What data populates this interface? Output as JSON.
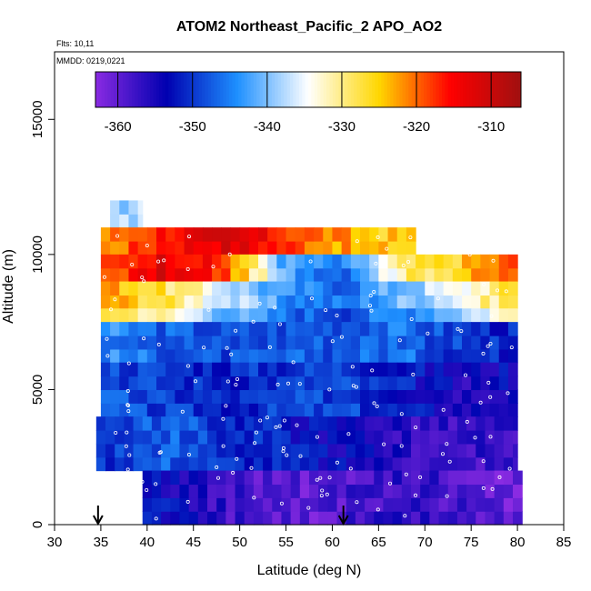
{
  "chart_data": {
    "type": "heatmap",
    "title": "ATOM2 Northeast_Pacific_2 APO_AO2",
    "annotations": {
      "flights": "Flts: 10,11",
      "dates": "MMDD: 0219,0221"
    },
    "xlabel": "Latitude (deg N)",
    "ylabel": "Altitude (m)",
    "xlim": [
      30,
      85
    ],
    "ylim": [
      0,
      17500
    ],
    "x_ticks": [
      30,
      35,
      40,
      45,
      50,
      55,
      60,
      65,
      70,
      75,
      80,
      85
    ],
    "y_ticks": [
      0,
      5000,
      10000,
      15000
    ],
    "grid": false,
    "colorbar": {
      "range": [
        -363,
        -306
      ],
      "ticks": [
        -360,
        -350,
        -340,
        -330,
        -320,
        -310
      ],
      "colors": [
        "#8a2be2",
        "#0000b0",
        "#1e90ff",
        "#ffffff",
        "#ffd700",
        "#ff0000",
        "#a01010"
      ]
    },
    "profiles": [
      {
        "lat_range": [
          34.5,
          39.5
        ],
        "alt_range": [
          1500,
          11900
        ]
      },
      {
        "lat_range": [
          39.5,
          80.5
        ],
        "alt_range": [
          0,
          11000
        ]
      }
    ],
    "layers": [
      {
        "alt": [
          11000,
          12000
        ],
        "lat": [
          36,
          39.5
        ],
        "values": [
          -340,
          -335
        ]
      },
      {
        "alt": [
          10000,
          11000
        ],
        "lat": [
          35,
          69
        ],
        "values": [
          -322,
          -315,
          -312,
          -318,
          -324,
          -326
        ]
      },
      {
        "alt": [
          9000,
          10000
        ],
        "lat": [
          35,
          80
        ],
        "values": [
          -320,
          -312,
          -318,
          -342,
          -346,
          -330,
          -325,
          -318
        ]
      },
      {
        "alt": [
          8000,
          9000
        ],
        "lat": [
          35,
          80
        ],
        "values": [
          -322,
          -328,
          -336,
          -344,
          -346,
          -340,
          -334,
          -326
        ]
      },
      {
        "alt": [
          7500,
          8000
        ],
        "lat": [
          35,
          80
        ],
        "values": [
          -326,
          -332,
          -340,
          -346,
          -348,
          -344,
          -338,
          -330
        ]
      },
      {
        "alt": [
          6000,
          7500
        ],
        "lat": [
          35,
          80
        ],
        "values": [
          -344,
          -347,
          -349,
          -348,
          -347,
          -346,
          -350,
          -352
        ]
      },
      {
        "alt": [
          4000,
          6000
        ],
        "lat": [
          35,
          80
        ],
        "values": [
          -348,
          -350,
          -351,
          -350,
          -349,
          -352,
          -355,
          -353
        ]
      },
      {
        "alt": [
          2000,
          4000
        ],
        "lat": [
          34.5,
          80
        ],
        "values": [
          -350,
          -347,
          -350,
          -352,
          -354,
          -356,
          -358,
          -357
        ]
      },
      {
        "alt": [
          0,
          2000
        ],
        "lat": [
          39.5,
          80.5
        ],
        "values": [
          -352,
          -356,
          -359,
          -360,
          -358,
          -357,
          -359,
          -361
        ]
      }
    ],
    "markers": [
      {
        "type": "arrow-down",
        "lat": 34.7
      },
      {
        "type": "arrow-down",
        "lat": 61.2
      }
    ]
  }
}
